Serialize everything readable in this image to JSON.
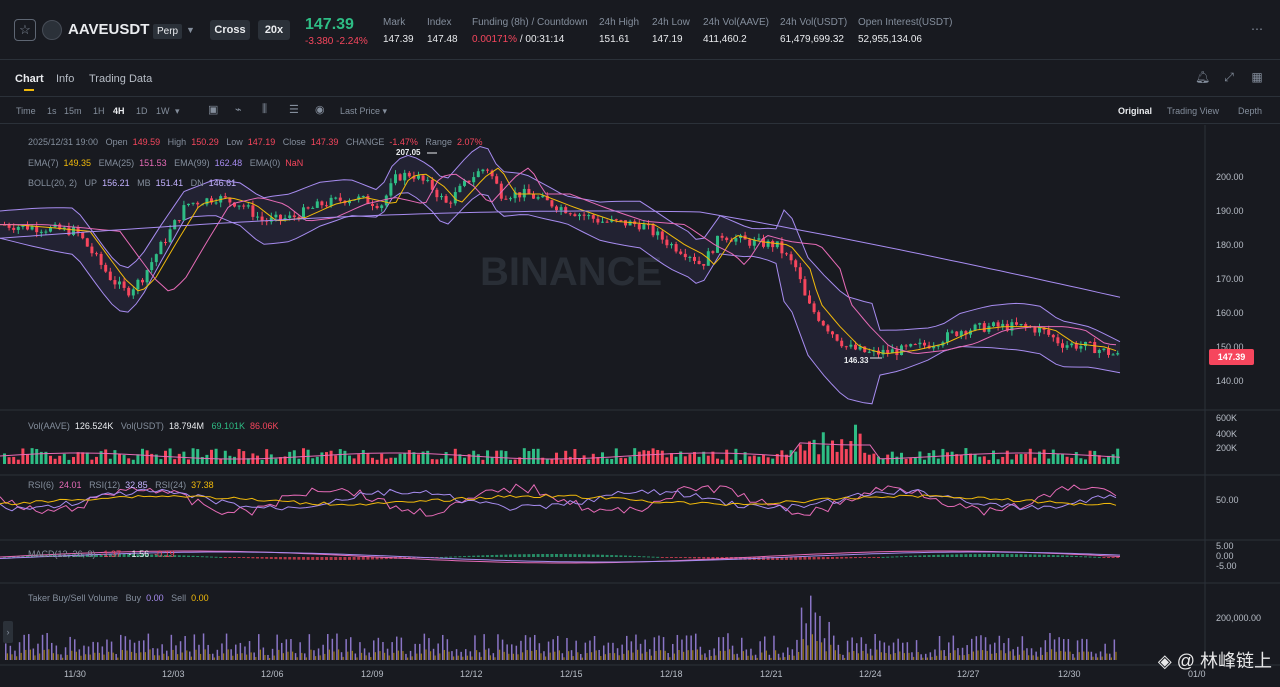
{
  "ticker": {
    "symbol": "AAVEUSDT",
    "contract_type": "Perp",
    "margin_mode": "Cross",
    "leverage": "20x",
    "last_price": "147.39",
    "change_abs": "-3.380",
    "change_pct": "-2.24%",
    "stats": [
      {
        "label": "Mark",
        "value": "147.39",
        "color": "white"
      },
      {
        "label": "Index",
        "value": "147.48",
        "color": "white"
      },
      {
        "label": "Funding (8h) / Countdown",
        "value": "0.00171%",
        "value2": "/ 00:31:14",
        "color": "red"
      },
      {
        "label": "24h High",
        "value": "151.61",
        "color": "white"
      },
      {
        "label": "24h Low",
        "value": "147.19",
        "color": "white"
      },
      {
        "label": "24h Vol(AAVE)",
        "value": "411,460.2",
        "color": "white"
      },
      {
        "label": "24h Vol(USDT)",
        "value": "61,479,699.32",
        "color": "white"
      },
      {
        "label": "Open Interest(USDT)",
        "value": "52,955,134.06",
        "color": "white"
      }
    ]
  },
  "tabs": [
    "Chart",
    "Info",
    "Trading Data"
  ],
  "intervals": [
    "Time",
    "1s",
    "15m",
    "1H",
    "4H",
    "1D",
    "1W"
  ],
  "active_interval": "4H",
  "price_source": "Last Price",
  "views": [
    "Original",
    "Trading View",
    "Depth"
  ],
  "active_view": "Original",
  "candle_info": {
    "time": "2025/12/31 19:00",
    "open_label": "Open",
    "open": "149.59",
    "high_label": "High",
    "high": "150.29",
    "low_label": "Low",
    "low": "147.19",
    "close_label": "Close",
    "close": "147.39",
    "change_label": "CHANGE",
    "change": "-1.47%",
    "range_label": "Range",
    "range": "2.07%"
  },
  "ema": {
    "ema7_label": "EMA(7)",
    "ema7": "149.35",
    "ema25_label": "EMA(25)",
    "ema25": "151.53",
    "ema99_label": "EMA(99)",
    "ema99": "162.48",
    "ema0_label": "EMA(0)",
    "ema0": "NaN"
  },
  "boll": {
    "label": "BOLL(20, 2)",
    "up_label": "UP",
    "up": "156.21",
    "mb_label": "MB",
    "mb": "151.41",
    "dn_label": "DN",
    "dn": "146.61"
  },
  "annotations": {
    "high": "207.05",
    "low": "146.33"
  },
  "current_price_tag": "147.39",
  "price_axis": [
    "200.00",
    "190.00",
    "180.00",
    "170.00",
    "160.00",
    "150.00",
    "140.00"
  ],
  "volume": {
    "label1": "Vol(AAVE)",
    "value1": "126.524K",
    "label2": "Vol(USDT)",
    "value2": "18.794M",
    "ma1": "69.101K",
    "ma2": "86.06K",
    "axis": [
      "600K",
      "400K",
      "200K"
    ]
  },
  "rsi": {
    "rsi6_label": "RSI(6)",
    "rsi6": "24.01",
    "rsi12_label": "RSI(12)",
    "rsi12": "32.85",
    "rsi24_label": "RSI(24)",
    "rsi24": "37.38",
    "axis": [
      "50.00"
    ]
  },
  "macd": {
    "label": "MACD(12, 26, 9)",
    "v1": "-1.37",
    "v2": "-1.56",
    "v3": "-0.19",
    "axis": [
      "5.00",
      "0.00",
      "-5.00"
    ]
  },
  "taker": {
    "label": "Taker Buy/Sell Volume",
    "buy_label": "Buy",
    "buy": "0.00",
    "sell_label": "Sell",
    "sell": "0.00",
    "axis": [
      "200,000.00"
    ]
  },
  "x_axis": [
    "11/30",
    "12/03",
    "12/06",
    "12/09",
    "12/12",
    "12/15",
    "12/18",
    "12/21",
    "12/24",
    "12/27",
    "12/30",
    "01/0"
  ],
  "watermark": "BINANCE",
  "credit": "◈ @ 林峰链上",
  "colors": {
    "up": "#2ebd85",
    "down": "#f6465d",
    "accent": "#f0b90b",
    "bg": "#181a20"
  }
}
